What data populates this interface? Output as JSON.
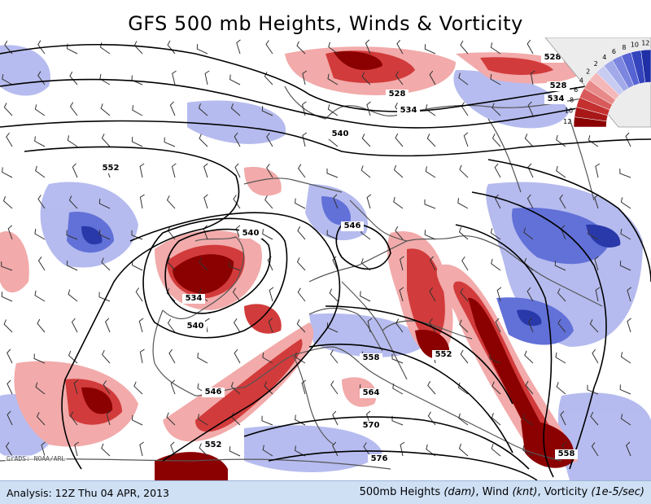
{
  "title": "GFS 500 mb Heights, Winds & Vorticity",
  "analysis": "Analysis: 12Z Thu 04 APR, 2013",
  "legend": {
    "prefix": "500mb Heights ",
    "heights_unit": "(dam)",
    "winds": ", Wind ",
    "winds_unit": "(knt)",
    "vorticity": ", Vorticity ",
    "vorticity_unit": "(1e-5/sec)"
  },
  "credit": "GrADS: NOAA/ARL",
  "contour_labels": [
    {
      "id": "528-a",
      "text": "528"
    },
    {
      "id": "528-b",
      "text": "528"
    },
    {
      "id": "528-c",
      "text": "528"
    },
    {
      "id": "534-a",
      "text": "534"
    },
    {
      "id": "534-b",
      "text": "534"
    },
    {
      "id": "534-c",
      "text": "534"
    },
    {
      "id": "540-a",
      "text": "540"
    },
    {
      "id": "540-b",
      "text": "540"
    },
    {
      "id": "540-c",
      "text": "540"
    },
    {
      "id": "546-a",
      "text": "546"
    },
    {
      "id": "546-b",
      "text": "546"
    },
    {
      "id": "552-a",
      "text": "552"
    },
    {
      "id": "552-b",
      "text": "552"
    },
    {
      "id": "552-c",
      "text": "552"
    },
    {
      "id": "558-a",
      "text": "558"
    },
    {
      "id": "564-a",
      "text": "564"
    },
    {
      "id": "570-a",
      "text": "570"
    },
    {
      "id": "576-a",
      "text": "576"
    },
    {
      "id": "558-b",
      "text": "558"
    }
  ],
  "colorbar_ticks": [
    "12",
    "10",
    "8",
    "6",
    "4",
    "2",
    "2",
    "4",
    "6",
    "8",
    "10",
    "12"
  ],
  "colors": {
    "positive_strong": "#8b0000",
    "positive_mid": "#d23b3b",
    "positive_light": "#f2aaaa",
    "negative_strong": "#1f2fa6",
    "negative_mid": "#5a6ad6",
    "negative_light": "#b2b8ee",
    "contour": "#000000",
    "border": "#555555",
    "bottom_bar": "#cfe0f5"
  }
}
